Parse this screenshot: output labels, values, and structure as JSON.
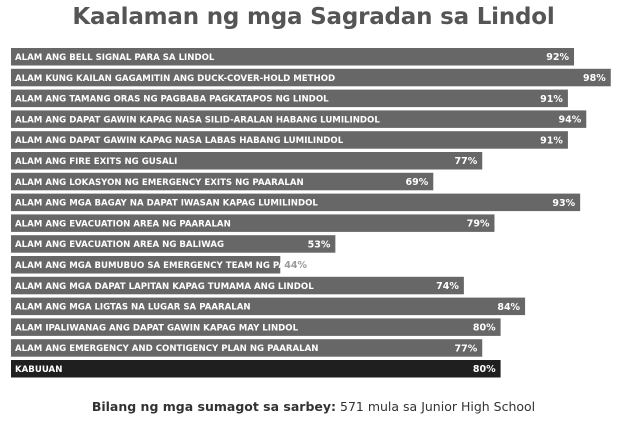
{
  "colors": {
    "bar": "#676767",
    "bar_highlight": "#1f1f1f",
    "title": "#555555",
    "text": "#333333",
    "value_outside": "#9a9a9a"
  },
  "chart_data": {
    "type": "bar",
    "orientation": "horizontal",
    "title": "Kaalaman ng mga Sagradan sa Lindol",
    "xlim": [
      0,
      100
    ],
    "unit": "%",
    "grid": false,
    "legend": "none",
    "categories": [
      "ALAM ANG BELL SIGNAL PARA SA LINDOL",
      "ALAM KUNG KAILAN GAGAMITIN ANG DUCK-COVER-HOLD METHOD",
      "ALAM ANG TAMANG ORAS NG PAGBABA PAGKATAPOS NG LINDOL",
      "ALAM ANG DAPAT GAWIN KAPAG NASA SILID-ARALAN HABANG LUMILINDOL",
      "ALAM ANG DAPAT GAWIN KAPAG NASA LABAS HABANG LUMILINDOL",
      "ALAM ANG FIRE EXITS NG GUSALI",
      "ALAM ANG LOKASYON NG EMERGENCY EXITS NG PAARALAN",
      "ALAM ANG MGA BAGAY NA DAPAT IWASAN KAPAG LUMILINDOL",
      "ALAM ANG EVACUATION AREA NG PAARALAN",
      "ALAM ANG EVACUATION AREA NG BALIWAG",
      "ALAM ANG MGA BUMUBUO SA EMERGENCY TEAM NG PAARALAN",
      "ALAM ANG MGA DAPAT LAPITAN KAPAG TUMAMA ANG LINDOL",
      "ALAM ANG MGA LIGTAS NA LUGAR SA PAARALAN",
      "ALAM IPALIWANAG ANG DAPAT GAWIN KAPAG MAY LINDOL",
      "ALAM ANG EMERGENCY AND CONTIGENCY PLAN NG PAARALAN",
      "KABUUAN"
    ],
    "values": [
      92,
      98,
      91,
      94,
      91,
      77,
      69,
      93,
      79,
      53,
      44,
      74,
      84,
      80,
      77,
      80
    ],
    "value_labels": [
      "92%",
      "98%",
      "91%",
      "94%",
      "91%",
      "77%",
      "69%",
      "93%",
      "79%",
      "53%",
      "44%",
      "74%",
      "84%",
      "80%",
      "77%",
      "80%"
    ],
    "highlight": "KABUUAN"
  },
  "footnote": {
    "label": "Bilang ng mga sumagot sa sarbey:",
    "text": " 571 mula sa Junior High School"
  }
}
